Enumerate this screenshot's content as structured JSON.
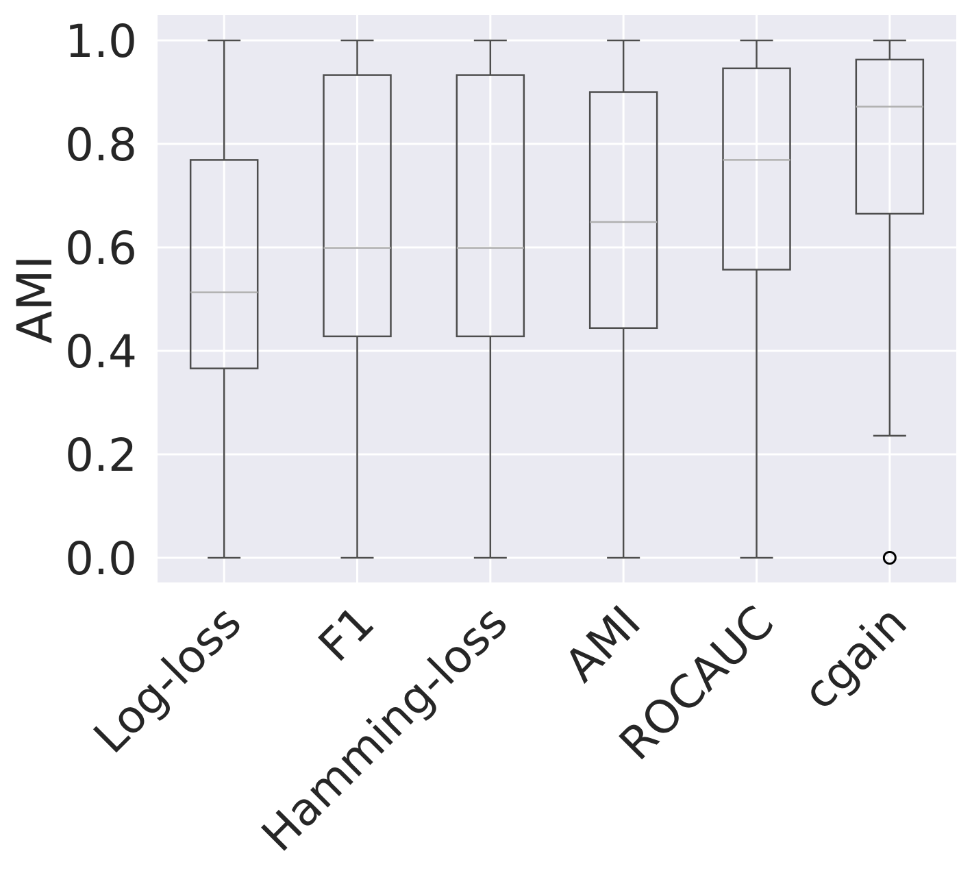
{
  "chart_data": {
    "type": "box",
    "categories": [
      "Log-loss",
      "F1",
      "Hamming-loss",
      "AMI",
      "ROCAUC",
      "cgain"
    ],
    "ylabel": "AMI",
    "xlabel": "",
    "ylim": [
      -0.047,
      1.048
    ],
    "yticks": [
      0.0,
      0.2,
      0.4,
      0.6,
      0.8,
      1.0
    ],
    "ytick_labels": [
      "0.0",
      "0.2",
      "0.4",
      "0.6",
      "0.8",
      "1.0"
    ],
    "grid": true,
    "boxes": [
      {
        "category": "Log-loss",
        "whisker_low": 0.0,
        "q1": 0.366,
        "median": 0.513,
        "q3": 0.769,
        "whisker_high": 1.0,
        "outliers": []
      },
      {
        "category": "F1",
        "whisker_low": 0.0,
        "q1": 0.428,
        "median": 0.599,
        "q3": 0.933,
        "whisker_high": 1.0,
        "outliers": []
      },
      {
        "category": "Hamming-loss",
        "whisker_low": 0.0,
        "q1": 0.428,
        "median": 0.599,
        "q3": 0.933,
        "whisker_high": 1.0,
        "outliers": []
      },
      {
        "category": "AMI",
        "whisker_low": 0.0,
        "q1": 0.444,
        "median": 0.649,
        "q3": 0.9,
        "whisker_high": 1.0,
        "outliers": []
      },
      {
        "category": "ROCAUC",
        "whisker_low": 0.0,
        "q1": 0.557,
        "median": 0.769,
        "q3": 0.946,
        "whisker_high": 1.0,
        "outliers": []
      },
      {
        "category": "cgain",
        "whisker_low": 0.236,
        "q1": 0.665,
        "median": 0.872,
        "q3": 0.963,
        "whisker_high": 1.0,
        "outliers": [
          0.0
        ]
      }
    ],
    "colors": {
      "background": "#eaeaf2",
      "grid": "#ffffff",
      "box_edge": "#4d4d4d",
      "median": "#b0b0b0",
      "text": "#262626"
    }
  }
}
